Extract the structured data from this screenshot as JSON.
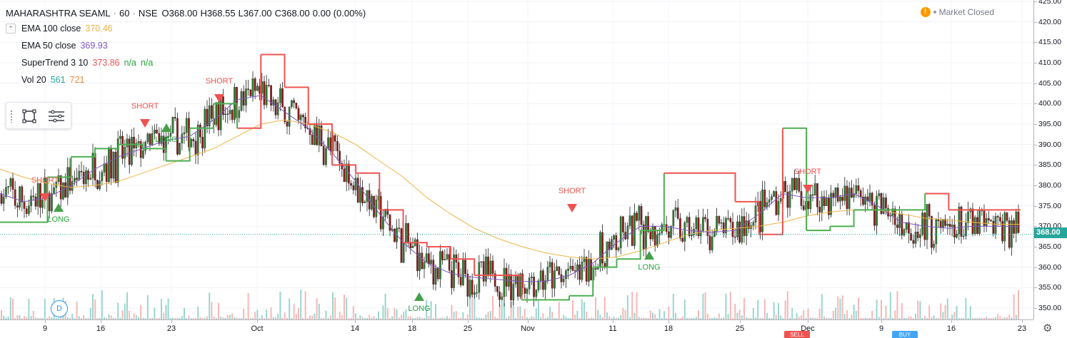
{
  "header": {
    "symbol": "MAHARASHTRA SEAML",
    "interval": "60",
    "exchange": "NSE",
    "ohlc": [
      {
        "label": "O",
        "value": "368.00"
      },
      {
        "label": "H",
        "value": "368.55"
      },
      {
        "label": "L",
        "value": "367.00"
      },
      {
        "label": "C",
        "value": "368.00"
      }
    ],
    "change": "0.00 (0.00%)"
  },
  "studies": [
    {
      "name": "EMA 100 close",
      "values": [
        "370.46"
      ],
      "color": "#f0b445"
    },
    {
      "name": "EMA 50 close",
      "values": [
        "369.93"
      ],
      "color": "#7e57c2"
    },
    {
      "name": "SuperTrend 3 10",
      "values": [
        "373.86",
        "n/a",
        "n/a"
      ],
      "colors": [
        "#ef5350",
        "#26a63a",
        "#26a63a"
      ]
    },
    {
      "name": "Vol 20",
      "values": [
        "561",
        "721"
      ],
      "colors": [
        "#26a69a",
        "#ef8a3c"
      ]
    }
  ],
  "market_status": {
    "text": "Market Closed",
    "icon": "warning-icon",
    "color": "#ff9800"
  },
  "drawing_toolbar": {
    "icons": [
      "drag-grip-icon",
      "rectangle-select-icon",
      "menu-lines-icon"
    ]
  },
  "event_marker": {
    "letter": "D"
  },
  "last_price": "368.00",
  "price_axis": {
    "ticks": [
      "425.00",
      "420.00",
      "415.00",
      "410.00",
      "405.00",
      "400.00",
      "395.00",
      "390.00",
      "385.00",
      "380.00",
      "375.00",
      "370.00",
      "365.00",
      "360.00",
      "355.00",
      "350.00"
    ]
  },
  "time_axis": {
    "ticks": [
      "9",
      "16",
      "23",
      "Oct",
      "14",
      "18",
      "25",
      "Nov",
      "11",
      "18",
      "25",
      "Dec",
      "9",
      "16",
      "23"
    ],
    "badges": {
      "sell": "SELL",
      "buy": "BUY"
    },
    "settings_icon": "gear-icon"
  },
  "signals": {
    "short_label": "SHORT",
    "long_label": "LONG"
  },
  "chart_data": {
    "type": "line",
    "price_range": [
      348,
      425
    ],
    "grid": true,
    "colors": {
      "up": "#26a69a",
      "down": "#ef5350",
      "candle_body_down": "#8b1a1a",
      "candle_body_up": "#2e7d32",
      "ema100": "#f0b445",
      "ema50": "#7e57c2",
      "supertrend_up": "#4caf50",
      "supertrend_down": "#ef5350",
      "volume_up": "#9bd6cf",
      "volume_down": "#f6b8b6"
    },
    "series": [
      {
        "name": "EMA 100 close",
        "values": [
          384,
          382,
          380.5,
          379.5,
          380,
          381,
          383,
          385,
          387,
          389,
          392,
          395,
          396,
          395,
          393,
          390,
          386,
          382,
          377,
          373,
          369.5,
          367,
          365,
          363.5,
          362.5,
          362,
          362.5,
          364,
          366,
          368,
          369,
          369.5,
          370,
          371,
          372.5,
          373.5,
          374,
          374,
          373,
          372,
          371.5,
          371,
          370.5,
          370.5
        ]
      },
      {
        "name": "EMA 50 close",
        "values": [
          378,
          376,
          377,
          380,
          384,
          387,
          389,
          391,
          392,
          396,
          401,
          402,
          398,
          394,
          388,
          381,
          373,
          366,
          361,
          358.5,
          357.5,
          357,
          356.5,
          356.5,
          358,
          361,
          366,
          370,
          370,
          369,
          368.5,
          369,
          373,
          378,
          377,
          377,
          378,
          375,
          371,
          370,
          369.5,
          370,
          370,
          369.9
        ]
      },
      {
        "name": "SuperTrend 3 10",
        "values": [
          371,
          371,
          382,
          387,
          389,
          390,
          389,
          386,
          394,
          400,
          394,
          412,
          404,
          395,
          385,
          383,
          374,
          366,
          365,
          362,
          358,
          358,
          352,
          352,
          353,
          360,
          362,
          369,
          383,
          383,
          383,
          376,
          368,
          394,
          369,
          370,
          374,
          374,
          374,
          378,
          374,
          374,
          374,
          373.86
        ]
      }
    ],
    "last_close": 368
  }
}
